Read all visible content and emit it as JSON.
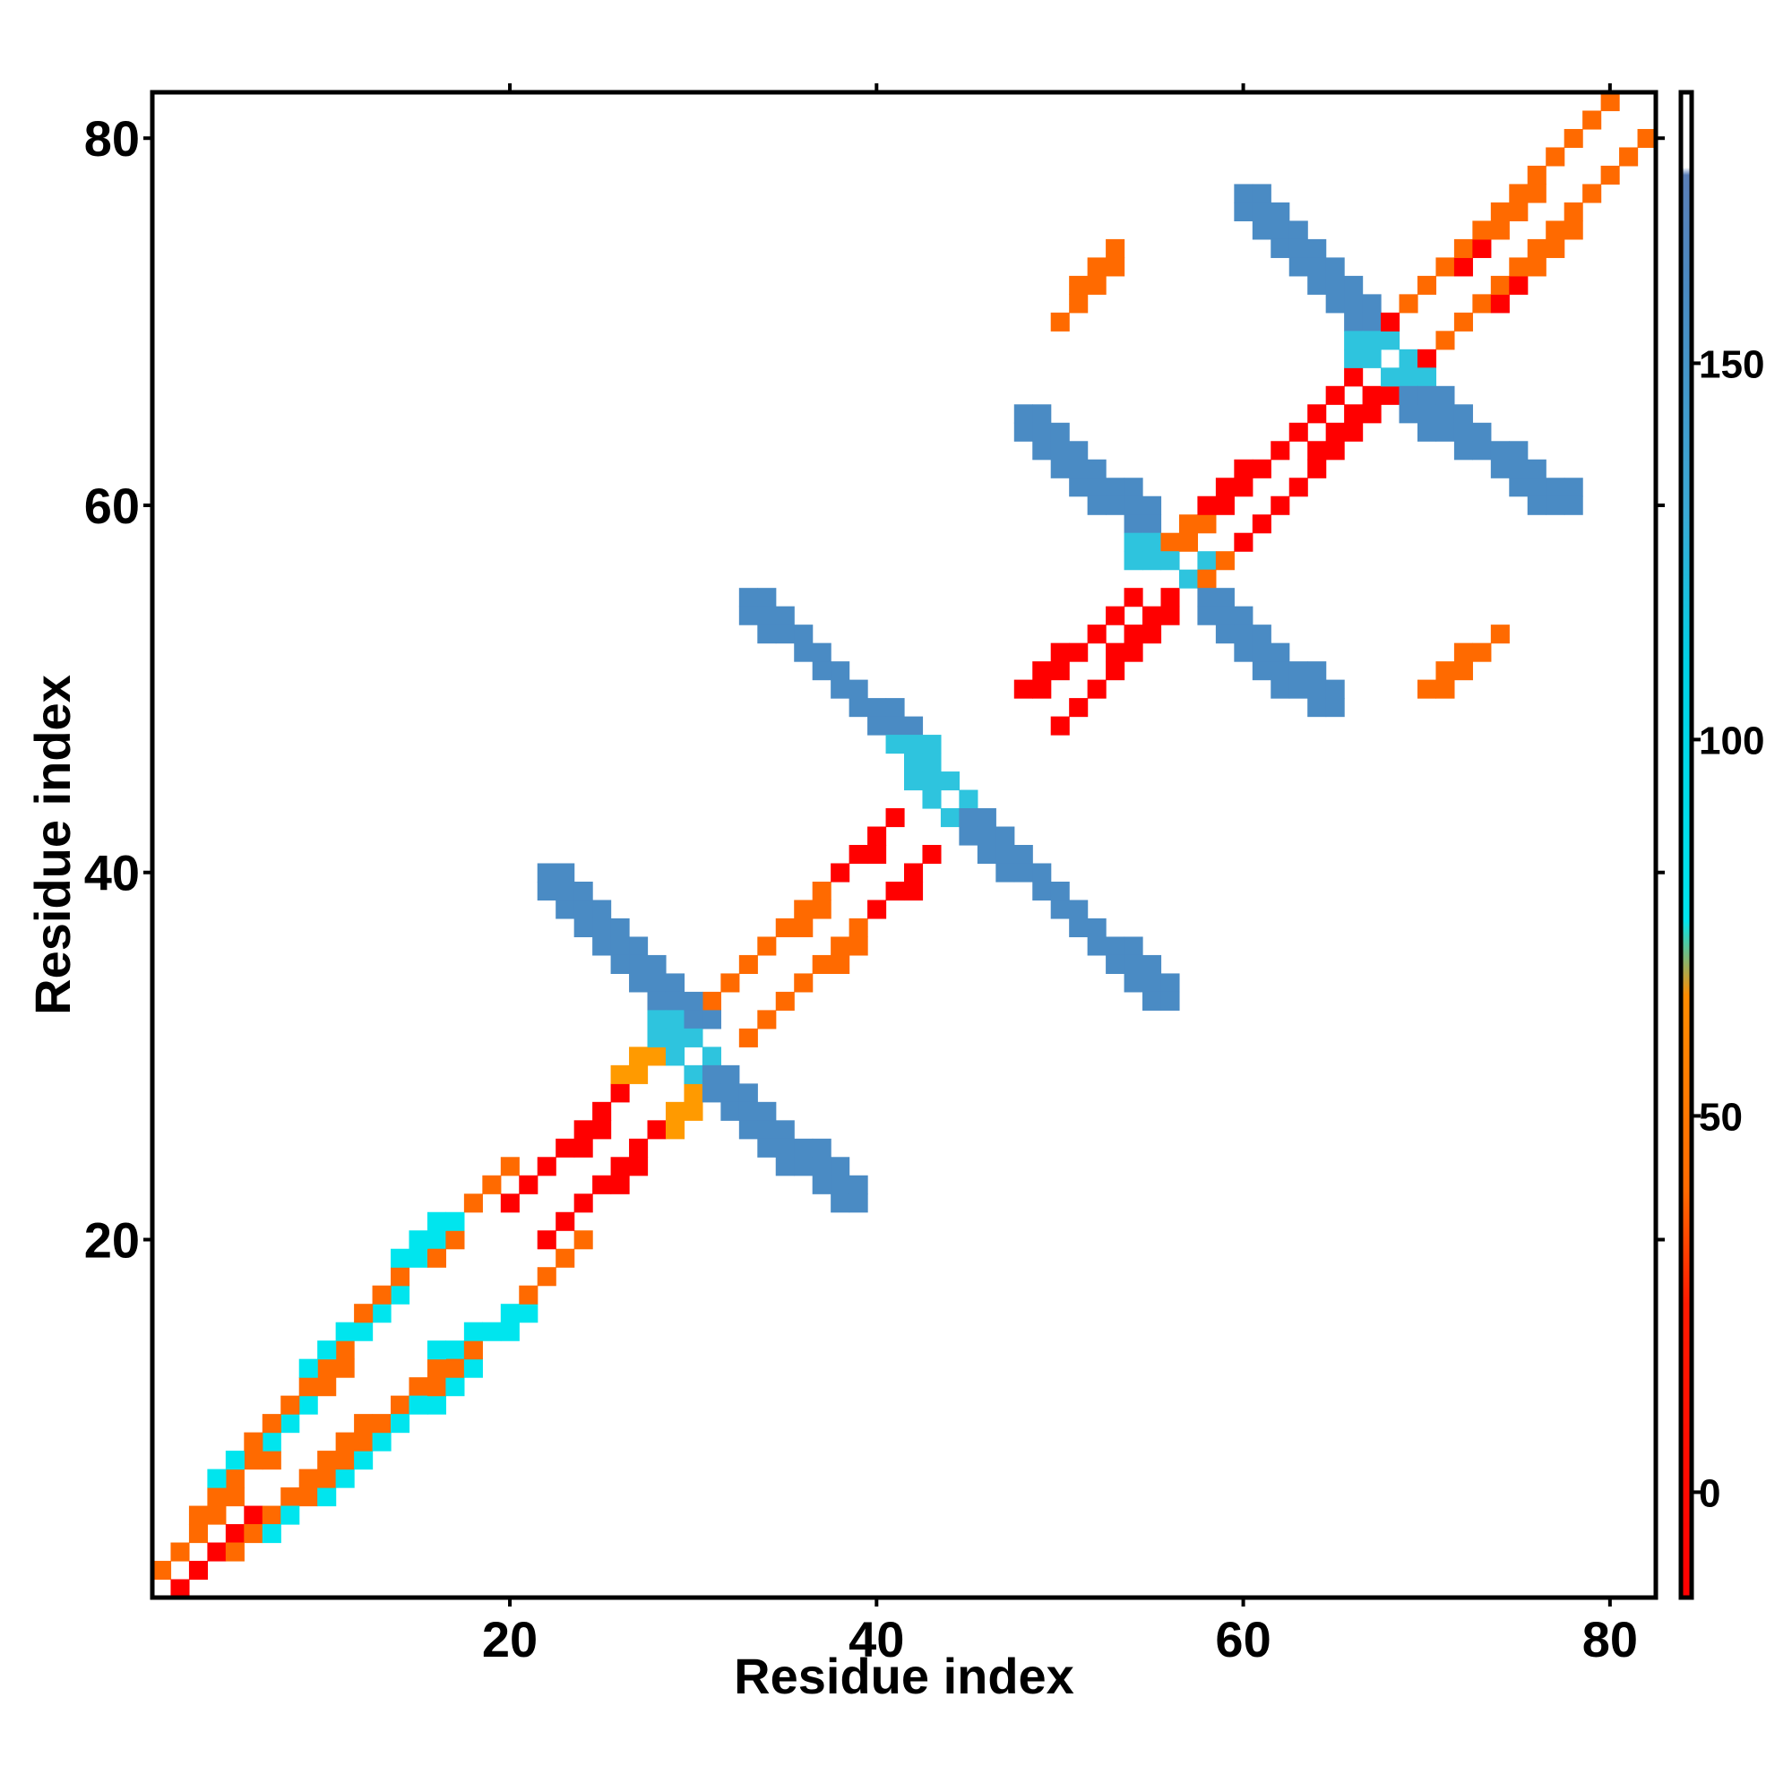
{
  "chart_data": {
    "type": "heatmap",
    "title": "",
    "xlabel": "Residue index",
    "ylabel": "Residue index",
    "xlim": [
      1,
      82
    ],
    "ylim": [
      1,
      82
    ],
    "x_ticks": [
      20,
      40,
      60,
      80
    ],
    "y_ticks": [
      20,
      40,
      60,
      80
    ],
    "colorbar": {
      "range": [
        -14,
        186
      ],
      "ticks": [
        0,
        50,
        100,
        150
      ],
      "stops": [
        {
          "value": -14,
          "color": "#ff0000"
        },
        {
          "value": 25,
          "color": "#ff1a00"
        },
        {
          "value": 40,
          "color": "#ff6a00"
        },
        {
          "value": 66,
          "color": "#ff8c00"
        },
        {
          "value": 76,
          "color": "#00e5ee"
        },
        {
          "value": 110,
          "color": "#00d2e6"
        },
        {
          "value": 130,
          "color": "#3aaad6"
        },
        {
          "value": 160,
          "color": "#4a8ac2"
        },
        {
          "value": 175,
          "color": "#5a7fb8"
        },
        {
          "value": 176,
          "color": "#ffffff"
        },
        {
          "value": 186,
          "color": "#ffffff"
        }
      ]
    },
    "palette": {
      "red": "#ff0000",
      "orange": "#ff6a00",
      "amber": "#ff9a00",
      "cyan": "#00e5ee",
      "cyan_blue": "#2ec4de",
      "steel_blue": "#4a8bc4"
    },
    "segments": [
      {
        "x": [
          1,
          4
        ],
        "y": [
          1,
          4
        ],
        "color": "red",
        "w": 1.1
      },
      {
        "x": [
          2,
          4
        ],
        "y": [
          2,
          4
        ],
        "color": "orange",
        "w": 1.1
      },
      {
        "x": [
          1,
          5
        ],
        "y": [
          2,
          6
        ],
        "color": "orange",
        "w": 1.1
      },
      {
        "x": [
          2,
          6
        ],
        "y": [
          1,
          5
        ],
        "color": "red",
        "w": 1.1
      },
      {
        "x": [
          3,
          10
        ],
        "y": [
          5,
          12
        ],
        "color": "orange",
        "w": 1.1
      },
      {
        "x": [
          5,
          12
        ],
        "y": [
          3,
          10
        ],
        "color": "orange",
        "w": 1.1
      },
      {
        "x": [
          4,
          12
        ],
        "y": [
          7,
          15
        ],
        "color": "cyan",
        "w": 1.2
      },
      {
        "x": [
          7,
          15
        ],
        "y": [
          4,
          12
        ],
        "color": "cyan",
        "w": 1.2
      },
      {
        "x": [
          6,
          14
        ],
        "y": [
          9,
          17
        ],
        "color": "orange",
        "w": 1.1
      },
      {
        "x": [
          9,
          17
        ],
        "y": [
          6,
          14
        ],
        "color": "orange",
        "w": 1.1
      },
      {
        "x": [
          9,
          16
        ],
        "y": [
          13,
          20
        ],
        "color": "cyan",
        "w": 1.2
      },
      {
        "x": [
          13,
          20
        ],
        "y": [
          9,
          16
        ],
        "color": "cyan",
        "w": 1.2
      },
      {
        "x": [
          12,
          20
        ],
        "y": [
          16,
          24
        ],
        "color": "orange",
        "w": 1.1
      },
      {
        "x": [
          16,
          24
        ],
        "y": [
          12,
          20
        ],
        "color": "orange",
        "w": 1.1
      },
      {
        "x": [
          14,
          17
        ],
        "y": [
          19,
          21
        ],
        "color": "cyan",
        "w": 1.1
      },
      {
        "x": [
          16,
          21
        ],
        "y": [
          14,
          16
        ],
        "color": "cyan",
        "w": 1.1
      },
      {
        "x": [
          20,
          28
        ],
        "y": [
          22,
          30
        ],
        "color": "red",
        "w": 1.1
      },
      {
        "x": [
          22,
          30
        ],
        "y": [
          20,
          28
        ],
        "color": "red",
        "w": 1.1
      },
      {
        "x": [
          26,
          28
        ],
        "y": [
          29,
          30
        ],
        "color": "amber",
        "w": 1.1
      },
      {
        "x": [
          29,
          30
        ],
        "y": [
          26,
          28
        ],
        "color": "amber",
        "w": 1.1
      },
      {
        "x": [
          31,
          41
        ],
        "y": [
          33,
          43
        ],
        "color": "orange",
        "w": 1.1
      },
      {
        "x": [
          33,
          43
        ],
        "y": [
          31,
          41
        ],
        "color": "orange",
        "w": 1.1
      },
      {
        "x": [
          38,
          41
        ],
        "y": [
          40,
          43
        ],
        "color": "red",
        "w": 1.1
      },
      {
        "x": [
          40,
          43
        ],
        "y": [
          38,
          41
        ],
        "color": "red",
        "w": 1.1
      },
      {
        "x": [
          22,
          31
        ],
        "y": [
          40,
          31
        ],
        "color": "steel_blue",
        "w": 2.1
      },
      {
        "x": [
          28,
          32
        ],
        "y": [
          32,
          28
        ],
        "color": "cyan_blue",
        "w": 2.3
      },
      {
        "x": [
          31,
          39
        ],
        "y": [
          29,
          22
        ],
        "color": "steel_blue",
        "w": 2.1
      },
      {
        "x": [
          33,
          42
        ],
        "y": [
          55,
          47
        ],
        "color": "steel_blue",
        "w": 1.5
      },
      {
        "x": [
          42,
          45
        ],
        "y": [
          47,
          43
        ],
        "color": "cyan_blue",
        "w": 2.4
      },
      {
        "x": [
          45,
          56
        ],
        "y": [
          43,
          33
        ],
        "color": "steel_blue",
        "w": 1.5
      },
      {
        "x": [
          46,
          50
        ],
        "y": [
          46,
          50
        ],
        "color": "orange",
        "w": 1.1
      },
      {
        "x": [
          48,
          56
        ],
        "y": [
          50,
          56
        ],
        "color": "red",
        "w": 1.3
      },
      {
        "x": [
          50,
          56
        ],
        "y": [
          48,
          55
        ],
        "color": "red",
        "w": 1.3
      },
      {
        "x": [
          50,
          53
        ],
        "y": [
          70,
          74
        ],
        "color": "orange",
        "w": 1.1
      },
      {
        "x": [
          70,
          74
        ],
        "y": [
          50,
          53
        ],
        "color": "orange",
        "w": 1.1
      },
      {
        "x": [
          48,
          55
        ],
        "y": [
          65,
          59
        ],
        "color": "steel_blue",
        "w": 2.2
      },
      {
        "x": [
          54,
          58
        ],
        "y": [
          58,
          56
        ],
        "color": "cyan_blue",
        "w": 2.2
      },
      {
        "x": [
          58,
          65
        ],
        "y": [
          55,
          49
        ],
        "color": "steel_blue",
        "w": 2.2
      },
      {
        "x": [
          56,
          61
        ],
        "y": [
          58,
          61
        ],
        "color": "orange",
        "w": 1.1
      },
      {
        "x": [
          58,
          62
        ],
        "y": [
          56,
          60
        ],
        "color": "orange",
        "w": 1.1
      },
      {
        "x": [
          58,
          68
        ],
        "y": [
          60,
          68
        ],
        "color": "red",
        "w": 1.3
      },
      {
        "x": [
          60,
          68
        ],
        "y": [
          58,
          67
        ],
        "color": "red",
        "w": 1.3
      },
      {
        "x": [
          60,
          67
        ],
        "y": [
          77,
          70
        ],
        "color": "steel_blue",
        "w": 2.1
      },
      {
        "x": [
          66,
          70
        ],
        "y": [
          69,
          67
        ],
        "color": "cyan_blue",
        "w": 2.2
      },
      {
        "x": [
          69,
          78
        ],
        "y": [
          66,
          60
        ],
        "color": "steel_blue",
        "w": 2.1
      },
      {
        "x": [
          68,
          77
        ],
        "y": [
          70,
          79
        ],
        "color": "red",
        "w": 1.2
      },
      {
        "x": [
          70,
          79
        ],
        "y": [
          68,
          77
        ],
        "color": "red",
        "w": 1.2
      },
      {
        "x": [
          69,
          80
        ],
        "y": [
          71,
          82
        ],
        "color": "orange",
        "w": 1.1
      },
      {
        "x": [
          71,
          82
        ],
        "y": [
          69,
          80
        ],
        "color": "orange",
        "w": 1.1
      }
    ]
  }
}
